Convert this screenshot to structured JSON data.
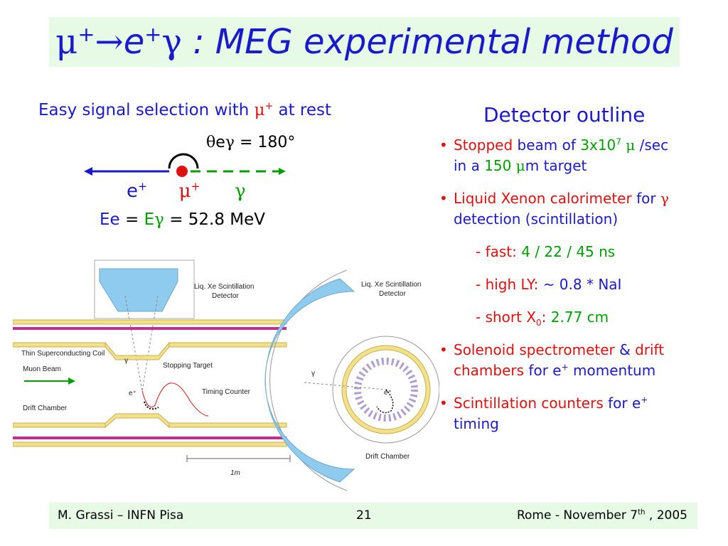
{
  "title": {
    "mu": "μ",
    "arrow": "→",
    "e": "e",
    "gamma": "γ",
    "rest": " : MEG experimental method"
  },
  "easy_signal": {
    "text": "Easy signal selection with ",
    "mu": "μ",
    "plus": "+",
    "at_rest": " at rest"
  },
  "kinematics": {
    "theta": "θ",
    "e": "e",
    "gamma": "γ",
    "angle": " = 180°",
    "e_label": "e",
    "mu_label": "μ",
    "gamma_label": "γ",
    "plus": "+",
    "energy_ee": "Ee",
    "energy_eq": " = ",
    "energy_E": "E",
    "energy_gamma": "γ",
    "energy_value": " = 52.8 MeV"
  },
  "detector": {
    "heading": "Detector outline",
    "b1": {
      "a": "Stopped",
      "b": " beam of ",
      "c": "3x10",
      "c_sup": "7",
      "d": " μ ",
      "e": "/sec",
      "f": "in a ",
      "g": "150 ",
      "h": "μ",
      "i": "m target"
    },
    "b2": {
      "a": "Liquid Xenon calorimeter",
      "b": " for ",
      "c": "γ",
      "d": "detection (scintillation)"
    },
    "s1": {
      "a": "- fast:  ",
      "b": "4 / 22 / 45 ns"
    },
    "s2": {
      "a": "- high LY: ",
      "b": "~ 0.8 * NaI"
    },
    "s3": {
      "a": "- short X",
      "a_sub": "0",
      "b": ": ",
      "c": "2.77 cm"
    },
    "b3": {
      "a": "Solenoid spectrometer",
      "b": " & ",
      "c": "drift chambers",
      "d": " for ",
      "e": "e",
      "e_sup": "+",
      "f": " momentum"
    },
    "b4": {
      "a": "Scintillation counters",
      "b": " for ",
      "c": "e",
      "c_sup": "+",
      "d": "timing"
    }
  },
  "diagram": {
    "liq_xe": "Liq. Xe Scintillation",
    "detector": "Detector",
    "thin_coil": "Thin Superconducting Coil",
    "muon_beam": "Muon Beam",
    "stopping_target": "Stopping Target",
    "timing_counter": "Timing Counter",
    "drift_chamber": "Drift Chamber",
    "gamma": "γ",
    "eplus": "e⁺",
    "scale": "1m"
  },
  "footer": {
    "left": "M. Grassi – INFN Pisa",
    "center": "21",
    "right_a": "Rome -  November 7",
    "right_sup": "th",
    "right_b": " , 2005"
  },
  "colors": {
    "title_bg": "#e6fae6",
    "blue": "#1a1acc",
    "red": "#e01010",
    "green": "#00a000",
    "detector_blue": "#8ecbee",
    "coil": "#f3e08a"
  }
}
